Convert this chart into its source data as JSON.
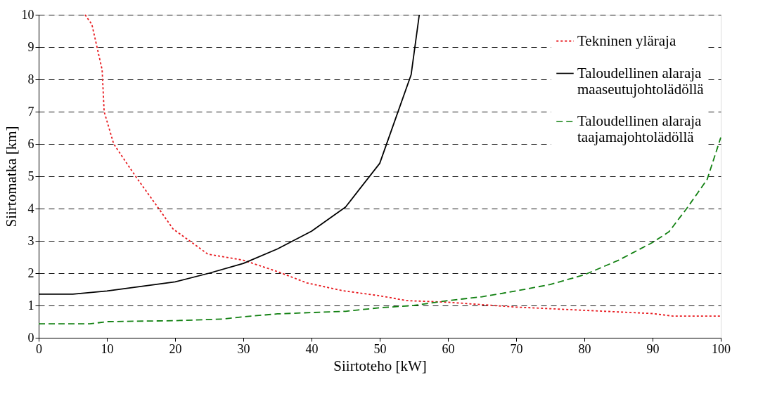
{
  "chart_data": {
    "type": "line",
    "xlabel": "Siirtoteho [kW]",
    "ylabel": "Siirtomatka [km]",
    "xlim": [
      0,
      100
    ],
    "xticks": [
      0,
      10,
      20,
      30,
      40,
      50,
      60,
      70,
      80,
      90,
      100
    ],
    "ylim": [
      0,
      10
    ],
    "yticks": [
      0,
      1,
      2,
      3,
      4,
      5,
      6,
      7,
      8,
      9,
      10
    ],
    "grid": "y",
    "legend": "top right",
    "marker": "none",
    "series": [
      {
        "name": "Tekninen yläraja",
        "color": "#e8191e",
        "line_style": "dotted",
        "x": [
          6.8,
          7.8,
          9.3,
          9.6,
          11,
          14.2,
          17.6,
          19.7,
          24.8,
          30,
          35,
          39.3,
          44.5,
          50,
          54,
          60,
          70,
          80,
          90,
          93,
          100
        ],
        "values": [
          10,
          9.7,
          8.3,
          7,
          6,
          5,
          4,
          3.37,
          2.59,
          2.4,
          2.05,
          1.7,
          1.46,
          1.3,
          1.15,
          1.1,
          0.95,
          0.85,
          0.75,
          0.67,
          0.67
        ]
      },
      {
        "name": "Taloudellinen alaraja\nmaaseutujohtolädöllä",
        "color": "#000000",
        "line_style": "solid",
        "x": [
          0,
          5,
          10,
          20,
          25,
          30,
          35,
          40,
          45,
          50,
          54.6,
          55.8
        ],
        "values": [
          1.35,
          1.35,
          1.45,
          1.73,
          2.0,
          2.3,
          2.75,
          3.3,
          4.05,
          5.4,
          8.14,
          10
        ]
      },
      {
        "name": "Taloudellinen alaraja\ntaajamajohtolädöllä",
        "color": "#118011",
        "line_style": "dashed",
        "x": [
          0,
          7.5,
          10,
          20,
          27,
          30,
          35,
          45,
          50,
          55,
          60,
          65,
          70,
          75,
          80,
          85,
          90,
          92.4,
          95,
          98,
          100
        ],
        "values": [
          0.43,
          0.43,
          0.5,
          0.53,
          0.58,
          0.65,
          0.74,
          0.82,
          0.93,
          1.0,
          1.15,
          1.27,
          1.45,
          1.65,
          1.95,
          2.4,
          2.95,
          3.28,
          4.0,
          4.9,
          6.2
        ]
      }
    ]
  }
}
